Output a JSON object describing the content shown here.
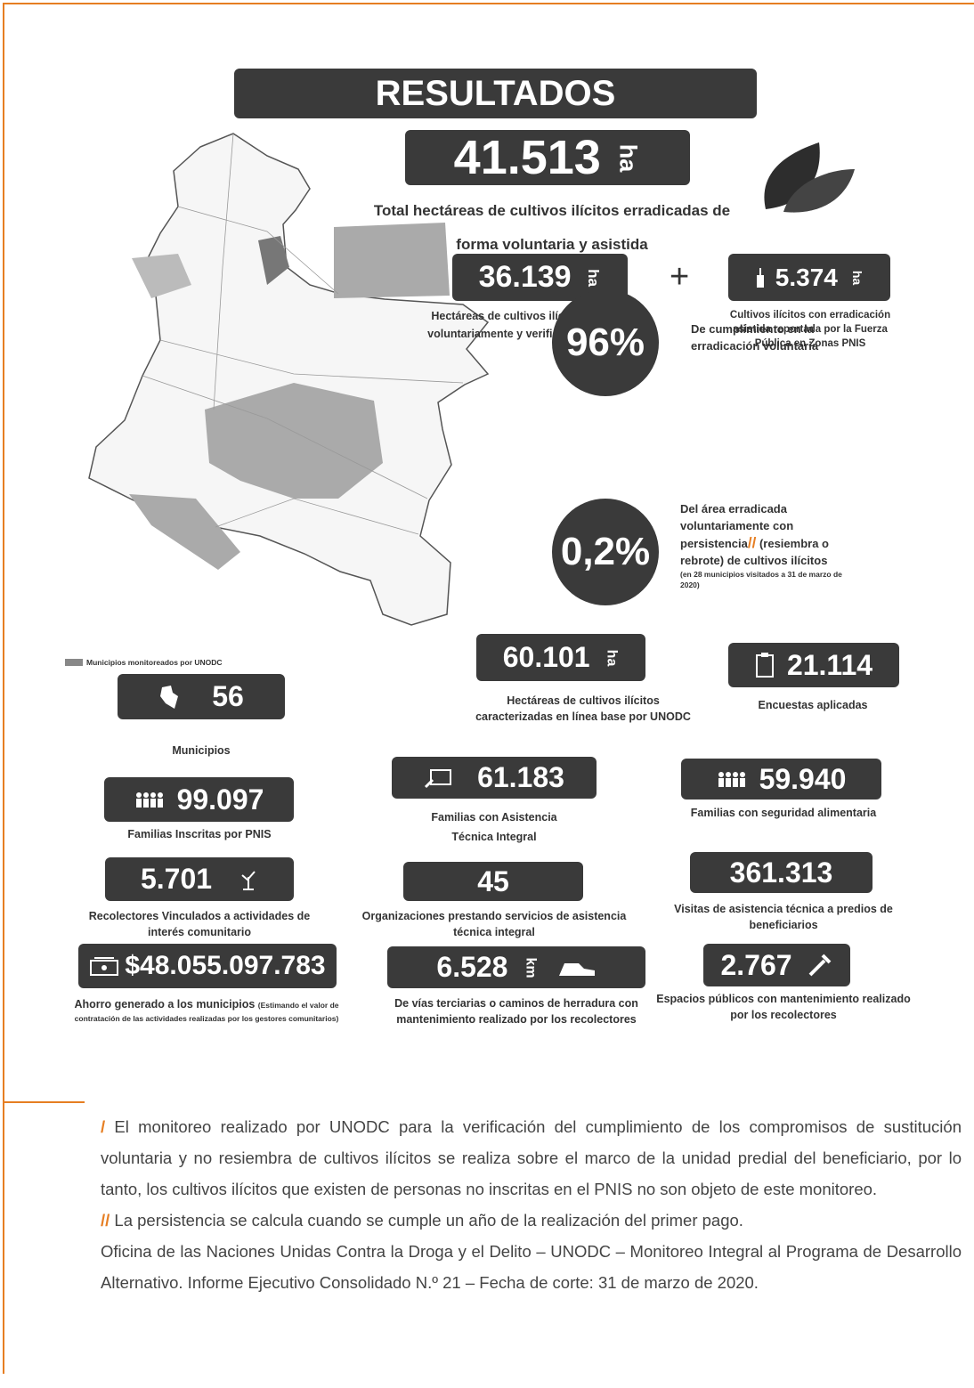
{
  "title": "RESULTADOS",
  "total": {
    "value": "41.513",
    "unit": "ha",
    "caption_1": "Total hectáreas de cultivos ilícitos erradicadas de",
    "caption_2": "forma voluntaria y asistida"
  },
  "voluntary": {
    "value": "36.139",
    "unit": "ha",
    "caption_1": "Hectáreas de cultivos ilícitos erradicadas",
    "caption_2": "voluntariamente y verificadas por UNODC",
    "marker": "/"
  },
  "plus": "+",
  "assisted": {
    "value": "5.374",
    "unit": "ha",
    "caption_1": "Cultivos ilícitos con erradicación",
    "caption_2": "asistida reportada por la Fuerza",
    "caption_3": "Pública en Zonas PNIS"
  },
  "compliance": {
    "value": "96%",
    "caption_1": "De cumplimiento en la",
    "caption_2": "erradicación voluntaria"
  },
  "persistence": {
    "value": "0,2%",
    "caption_1": "Del área erradicada",
    "caption_2": "voluntariamente con",
    "caption_3": "persistencia",
    "marker": "//",
    "caption_4": "(resiembra o",
    "caption_5": "rebrote) de cultivos ilícitos",
    "note": "(en 28 municipios visitados a 31 de marzo de 2020)"
  },
  "map_legend": "Municipios monitoreados por UNODC",
  "stats": [
    {
      "value": "60.101",
      "unit": "ha",
      "caption": "Hectáreas de cultivos ilícitos caracterizadas en línea base por UNODC"
    },
    {
      "value": "21.114",
      "caption": "Encuestas aplicadas"
    },
    {
      "value": "56",
      "caption": "Municipios"
    },
    {
      "value": "99.097",
      "caption": "Familias Inscritas por PNIS"
    },
    {
      "value": "61.183",
      "caption": "Familias con Asistencia Técnica Integral"
    },
    {
      "value": "59.940",
      "caption": "Familias con seguridad alimentaria"
    },
    {
      "value": "5.701",
      "caption": "Recolectores Vinculados a actividades de interés comunitario"
    },
    {
      "value": "45",
      "caption": "Organizaciones prestando servicios de asistencia técnica integral"
    },
    {
      "value": "361.313",
      "caption": "Visitas de asistencia técnica a predios de beneficiarios"
    },
    {
      "value": "$48.055.097.783",
      "caption": "Ahorro generado a los municipios",
      "note": "(Estimando el valor de contratación de las actividades realizadas por los gestores comunitarios)"
    },
    {
      "value": "6.528",
      "unit": "km",
      "caption": "De vías terciarias o caminos de herradura con mantenimiento realizado por los recolectores"
    },
    {
      "value": "2.767",
      "caption": "Espacios públicos con mantenimiento realizado por los recolectores"
    }
  ],
  "footnotes": [
    {
      "marker": "/",
      "text": "El monitoreo realizado por UNODC para la verificación del cumplimiento de los compromisos de sustitución voluntaria y no resiembra de cultivos ilícitos se realiza sobre el marco de la unidad predial del beneficiario, por lo tanto, los cultivos ilícitos que existen de personas no inscritas en el PNIS no son objeto de este monitoreo."
    },
    {
      "marker": "//",
      "text": "La persistencia se calcula cuando se cumple un año de la realización del primer pago."
    },
    {
      "text": "Oficina de las Naciones Unidas Contra la Droga y el Delito – UNODC – Monitoreo Integral al Programa de Desarrollo Alternativo. Informe Ejecutivo Consolidado N.º 21 – Fecha de corte: 31 de marzo de 2020."
    }
  ]
}
